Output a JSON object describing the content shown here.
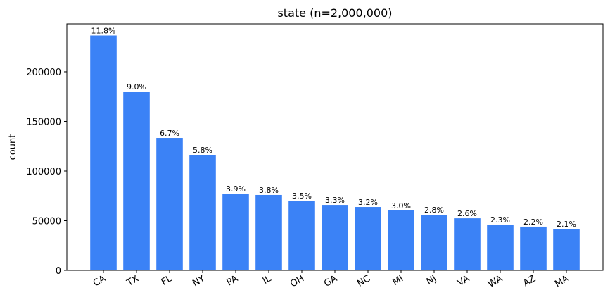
{
  "chart_data": {
    "type": "bar",
    "title": "state (n=2,000,000)",
    "y_label": "count",
    "categories": [
      "CA",
      "TX",
      "FL",
      "NY",
      "PA",
      "IL",
      "OH",
      "GA",
      "NC",
      "MI",
      "NJ",
      "VA",
      "WA",
      "AZ",
      "MA"
    ],
    "values": [
      236500,
      180000,
      133300,
      116300,
      77300,
      75900,
      70200,
      65900,
      63800,
      60300,
      56000,
      52400,
      46100,
      44000,
      41800
    ],
    "value_labels": [
      "11.8%",
      "9.0%",
      "6.7%",
      "5.8%",
      "3.9%",
      "3.8%",
      "3.5%",
      "3.3%",
      "3.2%",
      "3.0%",
      "2.8%",
      "2.6%",
      "2.3%",
      "2.2%",
      "2.1%"
    ],
    "color": "#3b82f6",
    "ylim": [
      0,
      248200
    ],
    "yticks": [
      0,
      50000,
      100000,
      150000,
      200000
    ],
    "grid": false
  }
}
